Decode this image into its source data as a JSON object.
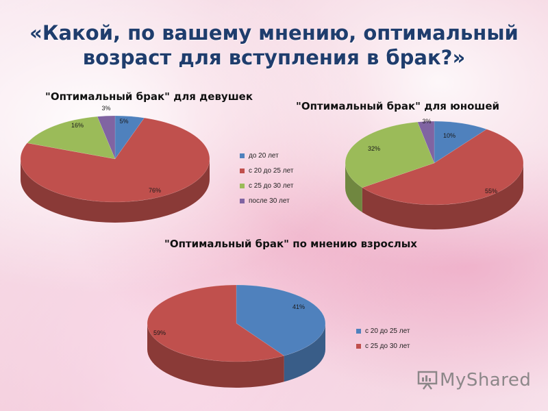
{
  "title": "«Какой,  по вашему мнению, оптимальный возраст для вступления в брак?»",
  "logo_text": "MyShared",
  "colors": {
    "blue": "#4f81bd",
    "red": "#c0504d",
    "green": "#9bbb59",
    "purple": "#8064a2"
  },
  "chart_data": [
    {
      "type": "pie",
      "title": "\"Оптимальный брак\" для девушек",
      "categories": [
        "до 20 лет",
        "с 20 до 25 лет",
        "с 25 до 30 лет",
        "после 30 лет"
      ],
      "values": [
        5,
        76,
        16,
        3
      ],
      "labels": [
        "5%",
        "76%",
        "16%",
        "3%"
      ],
      "legend_position": "right"
    },
    {
      "type": "pie",
      "title": "\"Оптимальный брак\" для юношей",
      "categories": [
        "до 20 лет",
        "с 20 до 25 лет",
        "с 25 до 30 лет",
        "после 30 лет"
      ],
      "values": [
        10,
        55,
        32,
        3
      ],
      "labels": [
        "10%",
        "55%",
        "32%",
        "3%"
      ]
    },
    {
      "type": "pie",
      "title": "\"Оптимальный брак\" по мнению взрослых",
      "categories": [
        "с 20 до 25 лет",
        "с 25 до 30 лет"
      ],
      "values": [
        41,
        59
      ],
      "labels": [
        "41%",
        "59%"
      ],
      "legend_position": "right"
    }
  ]
}
